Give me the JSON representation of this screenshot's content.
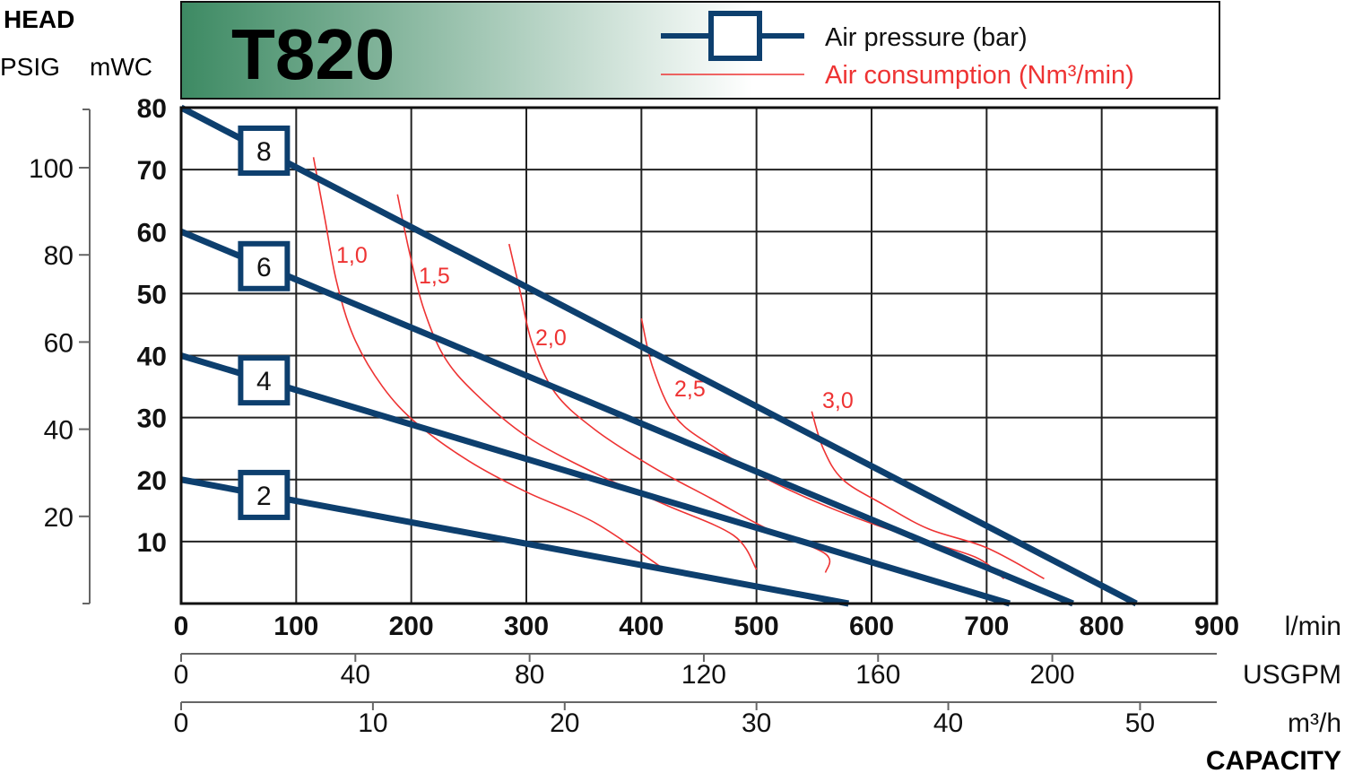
{
  "header": {
    "head": "HEAD",
    "psig": "PSIG",
    "mwc": "mWC",
    "model": "T820",
    "capacity": "CAPACITY"
  },
  "legend": {
    "pressure_label": "Air pressure (bar)",
    "consumption_label": "Air consumption (Nm³/min)"
  },
  "colors": {
    "pressure_curve": "#0d3f6e",
    "consumption_curve": "#ee3333",
    "grid": "#222222",
    "banner_dark": "#3d8a63",
    "banner_light": "#ffffff"
  },
  "chart_data": {
    "type": "line",
    "title": "T820",
    "x_axes": [
      {
        "unit": "l/min",
        "range": [
          0,
          900
        ],
        "ticks": [
          "0",
          "100",
          "200",
          "300",
          "400",
          "500",
          "600",
          "700",
          "800",
          "900"
        ],
        "tick_values": [
          0,
          100,
          200,
          300,
          400,
          500,
          600,
          700,
          800,
          900
        ]
      },
      {
        "unit": "USGPM",
        "ticks": [
          "0",
          "40",
          "80",
          "120",
          "160",
          "200"
        ],
        "tick_values": [
          0,
          40,
          80,
          120,
          160,
          200
        ]
      },
      {
        "unit": "m³/h",
        "ticks": [
          "0",
          "10",
          "20",
          "30",
          "40",
          "50"
        ],
        "tick_values": [
          0,
          10,
          20,
          30,
          40,
          50
        ]
      }
    ],
    "xlabel": "CAPACITY",
    "y_axes": [
      {
        "unit": "mWC",
        "range": [
          0,
          80
        ],
        "ticks": [
          "10",
          "20",
          "30",
          "40",
          "50",
          "60",
          "70",
          "80"
        ],
        "tick_values": [
          10,
          20,
          30,
          40,
          50,
          60,
          70,
          80
        ]
      },
      {
        "unit": "PSIG",
        "ticks": [
          "20",
          "40",
          "60",
          "80",
          "100"
        ],
        "tick_values": [
          20,
          40,
          60,
          80,
          100
        ]
      }
    ],
    "ylabel": "HEAD",
    "grid": true,
    "series": [
      {
        "name": "8",
        "group": "air_pressure",
        "points": [
          [
            0,
            80
          ],
          [
            830,
            0
          ]
        ]
      },
      {
        "name": "6",
        "group": "air_pressure",
        "points": [
          [
            0,
            60
          ],
          [
            775,
            0
          ]
        ]
      },
      {
        "name": "4",
        "group": "air_pressure",
        "points": [
          [
            0,
            40
          ],
          [
            720,
            0
          ]
        ]
      },
      {
        "name": "2",
        "group": "air_pressure",
        "points": [
          [
            0,
            20
          ],
          [
            580,
            0
          ]
        ]
      }
    ],
    "consumption_curves": [
      {
        "label": "1,0",
        "points": [
          [
            115,
            72
          ],
          [
            125,
            62
          ],
          [
            135,
            52
          ],
          [
            150,
            43
          ],
          [
            175,
            35
          ],
          [
            205,
            29
          ],
          [
            250,
            23
          ],
          [
            300,
            18
          ],
          [
            360,
            13
          ],
          [
            420,
            5.5
          ]
        ]
      },
      {
        "label": "1,5",
        "points": [
          [
            188,
            66
          ],
          [
            198,
            57
          ],
          [
            210,
            48
          ],
          [
            228,
            40
          ],
          [
            255,
            34
          ],
          [
            300,
            27
          ],
          [
            360,
            21
          ],
          [
            420,
            16
          ],
          [
            480,
            11
          ],
          [
            500,
            5.5
          ]
        ]
      },
      {
        "label": "2,0",
        "points": [
          [
            285,
            58
          ],
          [
            295,
            50
          ],
          [
            305,
            42
          ],
          [
            325,
            34
          ],
          [
            360,
            28
          ],
          [
            410,
            22
          ],
          [
            460,
            17
          ],
          [
            510,
            12
          ],
          [
            560,
            8
          ],
          [
            560,
            5
          ]
        ]
      },
      {
        "label": "2,5",
        "points": [
          [
            400,
            46
          ],
          [
            410,
            38
          ],
          [
            430,
            30
          ],
          [
            465,
            25
          ],
          [
            510,
            20
          ],
          [
            570,
            15
          ],
          [
            630,
            11
          ],
          [
            690,
            7.5
          ],
          [
            715,
            4
          ]
        ]
      },
      {
        "label": "3,0",
        "points": [
          [
            548,
            31
          ],
          [
            558,
            25
          ],
          [
            575,
            20
          ],
          [
            610,
            16
          ],
          [
            650,
            12
          ],
          [
            700,
            9
          ],
          [
            750,
            4
          ]
        ]
      }
    ]
  }
}
